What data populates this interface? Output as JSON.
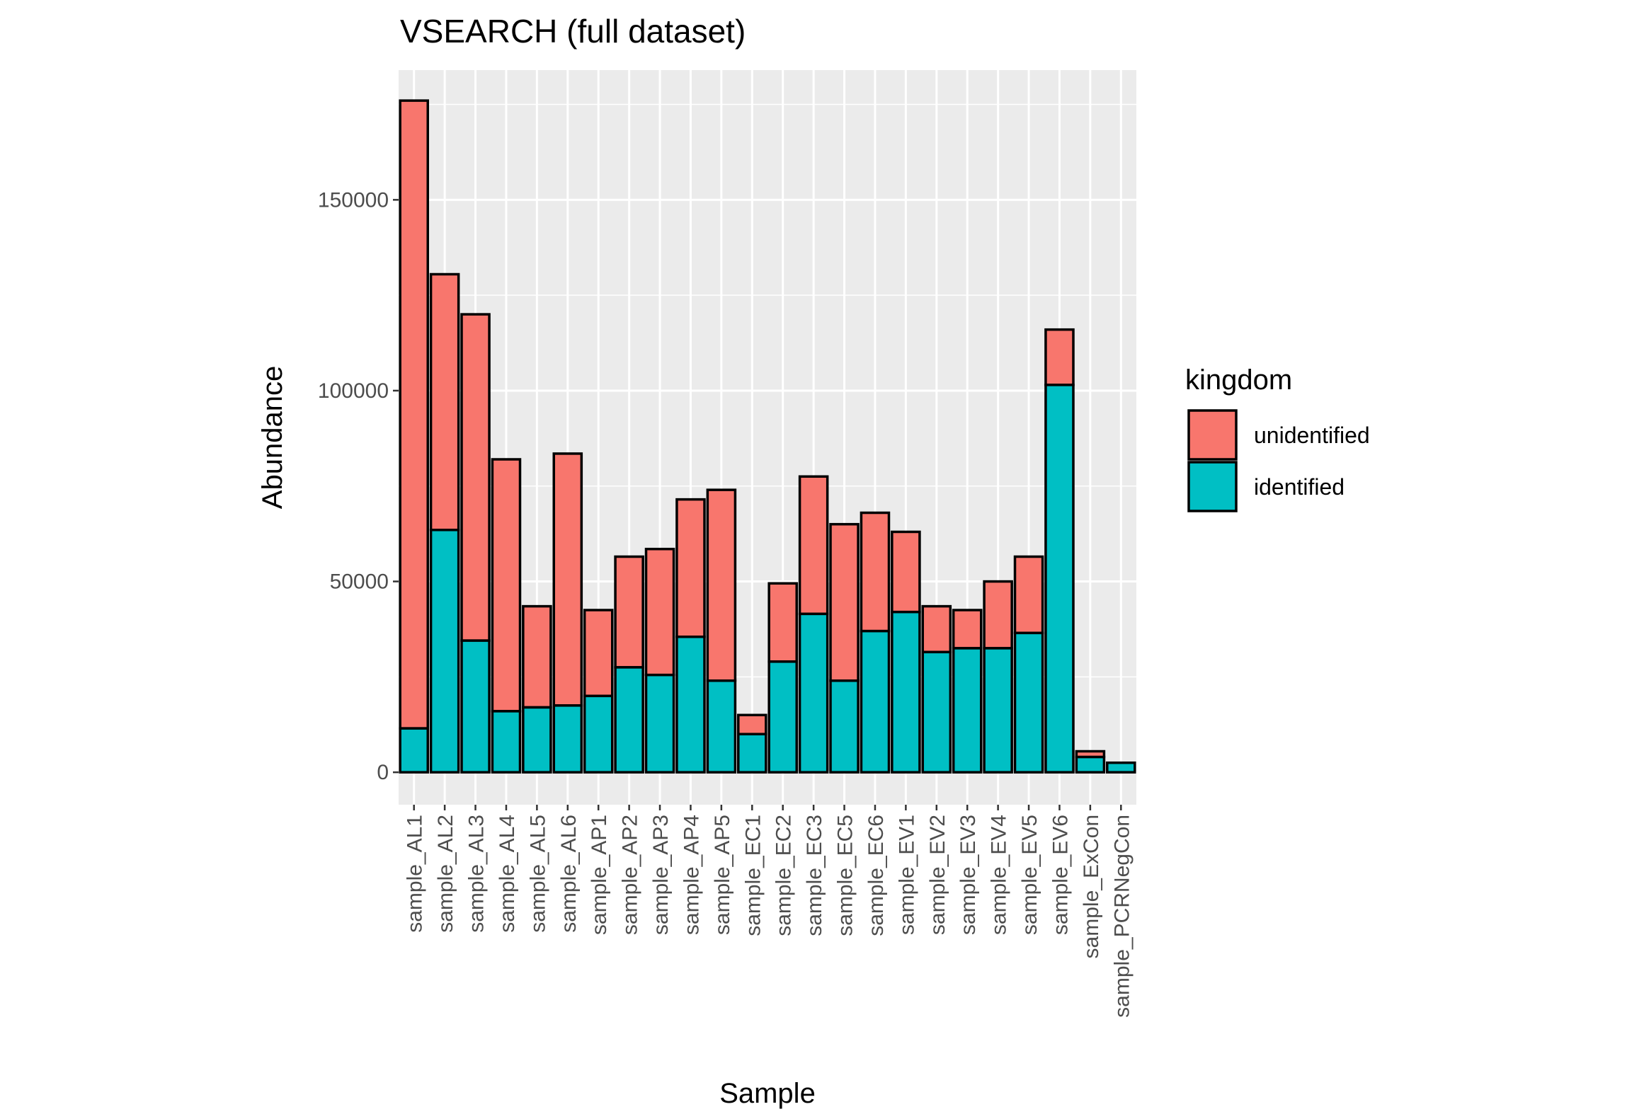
{
  "chart_data": {
    "type": "bar",
    "stacked": true,
    "title": "VSEARCH (full dataset)",
    "xlabel": "Sample",
    "ylabel": "Abundance",
    "ylim": [
      -8500,
      184000
    ],
    "yticks": [
      0,
      50000,
      100000,
      150000
    ],
    "ytick_labels": [
      "0",
      "50000",
      "100000",
      "150000"
    ],
    "grid": true,
    "legend": {
      "title": "kingdom",
      "position": "right"
    },
    "categories": [
      "sample_AL1",
      "sample_AL2",
      "sample_AL3",
      "sample_AL4",
      "sample_AL5",
      "sample_AL6",
      "sample_AP1",
      "sample_AP2",
      "sample_AP3",
      "sample_AP4",
      "sample_AP5",
      "sample_EC1",
      "sample_EC2",
      "sample_EC3",
      "sample_EC5",
      "sample_EC6",
      "sample_EV1",
      "sample_EV2",
      "sample_EV3",
      "sample_EV4",
      "sample_EV5",
      "sample_EV6",
      "sample_ExCon",
      "sample_PCRNegCon"
    ],
    "series": [
      {
        "name": "identified",
        "color": "#00BFC4",
        "values": [
          11500,
          63500,
          34500,
          16000,
          17000,
          17500,
          20000,
          27500,
          25500,
          35500,
          24000,
          10000,
          29000,
          41500,
          24000,
          37000,
          42000,
          31500,
          32500,
          32500,
          36500,
          101500,
          4000,
          2500
        ]
      },
      {
        "name": "unidentified",
        "color": "#F8766D",
        "values": [
          164500,
          67000,
          85500,
          66000,
          26500,
          66000,
          22500,
          29000,
          33000,
          36000,
          50000,
          5000,
          20500,
          36000,
          41000,
          31000,
          21000,
          12000,
          10000,
          17500,
          20000,
          14500,
          1500,
          0
        ]
      }
    ]
  }
}
